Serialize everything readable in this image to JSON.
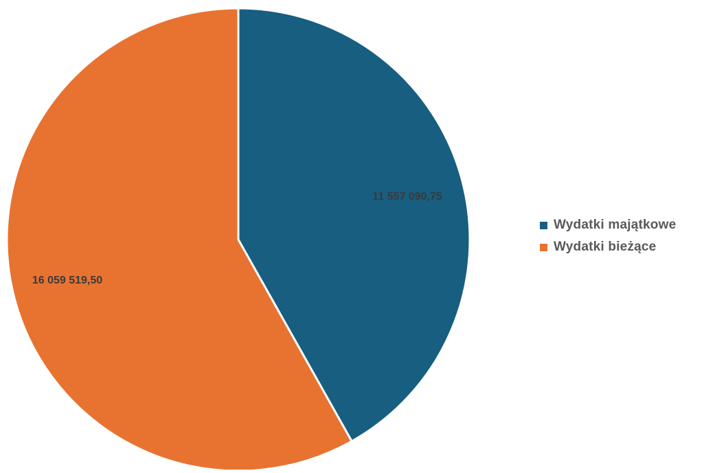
{
  "chart_data": {
    "type": "pie",
    "title": "",
    "categories": [
      "Wydatki majątkowe",
      "Wydatki bieżące"
    ],
    "values": [
      11557090.75,
      16059519.5
    ],
    "value_labels": [
      "11 557 090,75",
      "16 059 519,50"
    ],
    "colors": [
      "#175E80",
      "#E87331"
    ],
    "legend": "right",
    "start_angle": "top, clockwise"
  }
}
